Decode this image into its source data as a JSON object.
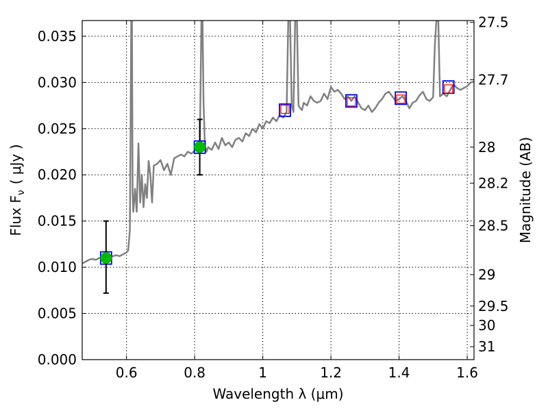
{
  "chart_data": {
    "type": "line",
    "xlabel": "Wavelength  λ (μm)",
    "ylabel": "Flux  F",
    "ylabel_subscript": "ν",
    "ylabel_unit": "( μJy )",
    "ylabel_right": "Magnitude (AB)",
    "xlim": [
      0.47,
      1.62
    ],
    "ylim": [
      0.0,
      0.0367
    ],
    "xticks": [
      0.6,
      0.8,
      1.0,
      1.2,
      1.4,
      1.6
    ],
    "xtick_labels": [
      "0.6",
      "0.8",
      "1",
      "1.2",
      "1.4",
      "1.6"
    ],
    "yticks": [
      0.0,
      0.005,
      0.01,
      0.015,
      0.02,
      0.025,
      0.03,
      0.035
    ],
    "ytick_labels": [
      "0.000",
      "0.005",
      "0.010",
      "0.015",
      "0.020",
      "0.025",
      "0.030",
      "0.035"
    ],
    "right_ticks": [
      {
        "label": "27.5",
        "flux": 0.0365
      },
      {
        "label": "27.7",
        "flux": 0.0303
      },
      {
        "label": "28",
        "flux": 0.023
      },
      {
        "label": "28.2",
        "flux": 0.0191
      },
      {
        "label": "28.5",
        "flux": 0.0145
      },
      {
        "label": "29",
        "flux": 0.0092
      },
      {
        "label": "29.5",
        "flux": 0.0058
      },
      {
        "label": "30",
        "flux": 0.0037
      },
      {
        "label": "31",
        "flux": 0.0014
      }
    ],
    "grid": true,
    "colors": {
      "spectrum": "#808080",
      "detection": "#00bb00",
      "model_box": "#0000ff",
      "filter_box": "#ff0000",
      "errorbar": "#000000"
    },
    "series": [
      {
        "kind": "spectrum",
        "x": [
          0.47,
          0.48,
          0.49,
          0.5,
          0.51,
          0.52,
          0.53,
          0.54,
          0.55,
          0.56,
          0.57,
          0.58,
          0.59,
          0.6,
          0.605,
          0.61,
          0.612,
          0.614,
          0.616,
          0.618,
          0.62,
          0.625,
          0.63,
          0.635,
          0.64,
          0.645,
          0.65,
          0.655,
          0.66,
          0.665,
          0.67,
          0.675,
          0.68,
          0.69,
          0.7,
          0.71,
          0.72,
          0.73,
          0.74,
          0.75,
          0.76,
          0.77,
          0.78,
          0.79,
          0.8,
          0.81,
          0.815,
          0.82,
          0.823,
          0.826,
          0.83,
          0.835,
          0.84,
          0.85,
          0.86,
          0.87,
          0.88,
          0.89,
          0.9,
          0.91,
          0.92,
          0.93,
          0.94,
          0.95,
          0.96,
          0.97,
          0.98,
          0.99,
          1.0,
          1.01,
          1.02,
          1.03,
          1.04,
          1.05,
          1.06,
          1.07,
          1.075,
          1.08,
          1.085,
          1.09,
          1.095,
          1.1,
          1.105,
          1.11,
          1.115,
          1.12,
          1.13,
          1.14,
          1.15,
          1.16,
          1.17,
          1.18,
          1.19,
          1.2,
          1.21,
          1.22,
          1.23,
          1.24,
          1.25,
          1.26,
          1.27,
          1.28,
          1.29,
          1.3,
          1.31,
          1.32,
          1.33,
          1.34,
          1.35,
          1.36,
          1.37,
          1.38,
          1.39,
          1.4,
          1.41,
          1.42,
          1.43,
          1.44,
          1.45,
          1.46,
          1.47,
          1.48,
          1.49,
          1.5,
          1.505,
          1.51,
          1.515,
          1.52,
          1.53,
          1.54,
          1.55,
          1.56,
          1.57,
          1.58,
          1.59,
          1.6,
          1.61,
          1.62
        ],
        "y": [
          0.0104,
          0.0106,
          0.0108,
          0.0109,
          0.0108,
          0.011,
          0.0109,
          0.0111,
          0.011,
          0.0112,
          0.0113,
          0.0112,
          0.0114,
          0.0116,
          0.0118,
          0.014,
          0.025,
          0.037,
          0.037,
          0.018,
          0.016,
          0.0185,
          0.016,
          0.0234,
          0.017,
          0.02,
          0.0165,
          0.019,
          0.0175,
          0.0215,
          0.02,
          0.017,
          0.021,
          0.0212,
          0.0216,
          0.0205,
          0.0212,
          0.02,
          0.0218,
          0.022,
          0.0222,
          0.022,
          0.0225,
          0.0223,
          0.0226,
          0.0228,
          0.0229,
          0.037,
          0.037,
          0.028,
          0.0232,
          0.0225,
          0.023,
          0.0227,
          0.0235,
          0.0228,
          0.024,
          0.0232,
          0.0235,
          0.023,
          0.0238,
          0.024,
          0.0236,
          0.0245,
          0.0242,
          0.025,
          0.0246,
          0.0255,
          0.025,
          0.0258,
          0.0256,
          0.0262,
          0.0258,
          0.0265,
          0.0262,
          0.0268,
          0.037,
          0.037,
          0.0275,
          0.0268,
          0.037,
          0.037,
          0.0275,
          0.0272,
          0.027,
          0.0278,
          0.0275,
          0.0285,
          0.028,
          0.0278,
          0.028,
          0.0288,
          0.0282,
          0.0295,
          0.029,
          0.0292,
          0.0288,
          0.0282,
          0.0285,
          0.028,
          0.0285,
          0.0278,
          0.0272,
          0.027,
          0.0275,
          0.0268,
          0.0272,
          0.0278,
          0.0282,
          0.0288,
          0.029,
          0.0285,
          0.028,
          0.0282,
          0.0285,
          0.028,
          0.0272,
          0.0278,
          0.028,
          0.0286,
          0.029,
          0.0282,
          0.028,
          0.0284,
          0.034,
          0.037,
          0.037,
          0.0285,
          0.0288,
          0.0285,
          0.0292,
          0.0298,
          0.0294,
          0.0292,
          0.0294,
          0.0296,
          0.03,
          0.0301
        ]
      },
      {
        "kind": "photometry",
        "x": [
          0.54,
          0.815,
          1.065,
          1.26,
          1.405,
          1.545
        ],
        "model_flux": [
          0.011,
          0.023,
          0.027,
          0.028,
          0.0283,
          0.0295
        ],
        "filter_flux": [
          null,
          null,
          0.0271,
          0.0279,
          0.0282,
          0.0293
        ],
        "detections": [
          {
            "x": 0.54,
            "y": 0.011,
            "err_low": 0.0072,
            "err_high": 0.015
          },
          {
            "x": 0.815,
            "y": 0.023,
            "err_low": 0.02,
            "err_high": 0.026
          }
        ]
      }
    ]
  }
}
